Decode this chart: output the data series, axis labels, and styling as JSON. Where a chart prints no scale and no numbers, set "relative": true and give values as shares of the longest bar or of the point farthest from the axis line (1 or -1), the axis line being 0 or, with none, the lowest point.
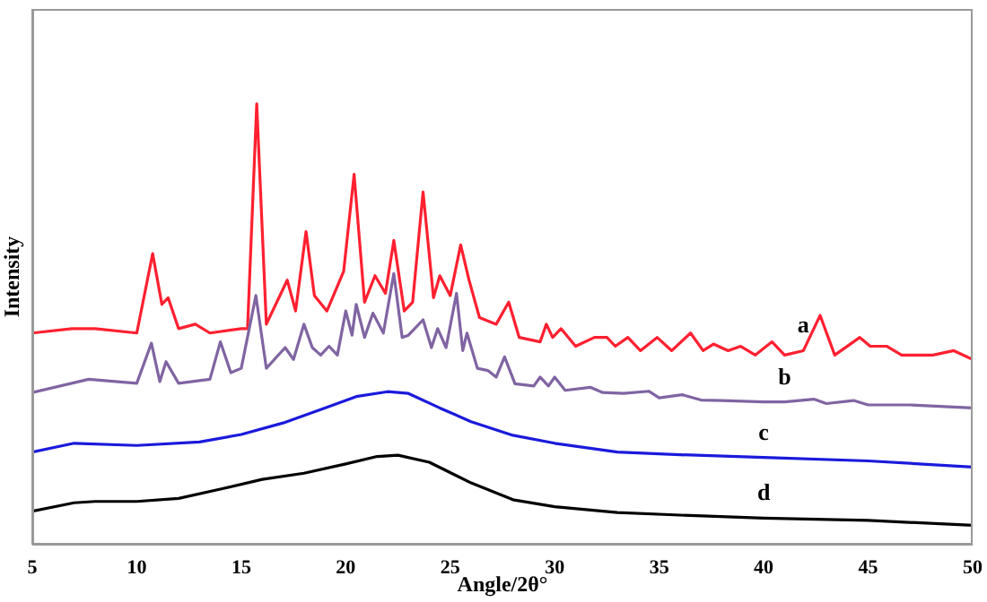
{
  "chart_data": {
    "type": "line",
    "xlabel": "Angle/2θ°",
    "ylabel": "Intensity",
    "relative": true,
    "xlim": [
      5,
      50
    ],
    "xticks": [
      5,
      10,
      15,
      20,
      25,
      30,
      35,
      40,
      45,
      50
    ],
    "tick_labels": "x",
    "series": [
      {
        "name": "a",
        "color": "#ff2030",
        "x": [
          5,
          6.9,
          8,
          10,
          10.76,
          11.2,
          11.5,
          12,
          12.8,
          13.5,
          15,
          15.3,
          15.74,
          16.2,
          17.2,
          17.6,
          18.1,
          18.5,
          19.1,
          19.9,
          20.4,
          20.9,
          21.4,
          21.9,
          22.3,
          22.8,
          23.2,
          23.7,
          24.2,
          24.5,
          25,
          25.5,
          25.9,
          26.4,
          27.2,
          27.8,
          28.3,
          29.3,
          29.6,
          29.9,
          30.3,
          31,
          31.9,
          32.5,
          32.9,
          33.5,
          34.1,
          34.9,
          35.6,
          36.5,
          37.1,
          37.6,
          38.3,
          38.9,
          39.6,
          40.4,
          41,
          41.9,
          42.7,
          43.4,
          44.6,
          45.1,
          45.9,
          46.6,
          48.1,
          49.1,
          50
        ],
        "values": [
          0.48,
          0.49,
          0.49,
          0.48,
          0.66,
          0.545,
          0.56,
          0.49,
          0.5,
          0.48,
          0.49,
          0.49,
          1.0,
          0.5,
          0.6,
          0.53,
          0.71,
          0.565,
          0.53,
          0.62,
          0.84,
          0.55,
          0.61,
          0.57,
          0.69,
          0.53,
          0.55,
          0.8,
          0.56,
          0.61,
          0.565,
          0.68,
          0.6,
          0.515,
          0.5,
          0.55,
          0.47,
          0.46,
          0.5,
          0.47,
          0.49,
          0.45,
          0.47,
          0.47,
          0.45,
          0.47,
          0.44,
          0.47,
          0.44,
          0.48,
          0.44,
          0.455,
          0.44,
          0.45,
          0.43,
          0.46,
          0.43,
          0.44,
          0.52,
          0.43,
          0.47,
          0.45,
          0.45,
          0.43,
          0.43,
          0.44,
          0.42
        ]
      },
      {
        "name": "b",
        "color": "#8064a2",
        "x": [
          5,
          7.7,
          10,
          10.7,
          11.1,
          11.4,
          12,
          13.5,
          14,
          14.5,
          15,
          15.7,
          16.2,
          17.1,
          17.5,
          18,
          18.4,
          18.8,
          19.2,
          19.6,
          20,
          20.3,
          20.5,
          20.9,
          21.3,
          21.8,
          22.3,
          22.7,
          23,
          23.7,
          24.1,
          24.4,
          24.8,
          25.3,
          25.6,
          25.8,
          26.3,
          26.8,
          27.2,
          27.6,
          28.1,
          29,
          29.3,
          29.7,
          30,
          30.5,
          31.7,
          32.3,
          33.3,
          34.5,
          35,
          36.1,
          37,
          38,
          40,
          41,
          42.4,
          43,
          44.3,
          45,
          47,
          50
        ],
        "values": [
          0.345,
          0.375,
          0.366,
          0.457,
          0.37,
          0.415,
          0.366,
          0.375,
          0.46,
          0.39,
          0.4,
          0.565,
          0.4,
          0.447,
          0.42,
          0.5,
          0.447,
          0.43,
          0.45,
          0.43,
          0.53,
          0.475,
          0.545,
          0.47,
          0.525,
          0.48,
          0.615,
          0.47,
          0.475,
          0.51,
          0.447,
          0.49,
          0.447,
          0.57,
          0.44,
          0.48,
          0.4,
          0.395,
          0.38,
          0.426,
          0.365,
          0.36,
          0.38,
          0.36,
          0.38,
          0.35,
          0.357,
          0.345,
          0.343,
          0.348,
          0.333,
          0.34,
          0.328,
          0.327,
          0.324,
          0.324,
          0.33,
          0.32,
          0.327,
          0.317,
          0.317,
          0.31
        ]
      },
      {
        "name": "c",
        "color": "#1a1adc",
        "x": [
          5,
          7,
          10,
          13,
          15,
          17,
          19,
          20.5,
          22,
          23,
          24.5,
          26,
          28,
          30,
          33,
          36,
          40,
          45,
          50
        ],
        "values": [
          0.21,
          0.23,
          0.225,
          0.233,
          0.25,
          0.276,
          0.31,
          0.336,
          0.347,
          0.343,
          0.31,
          0.279,
          0.248,
          0.23,
          0.21,
          0.204,
          0.198,
          0.19,
          0.176
        ]
      },
      {
        "name": "d",
        "color": "#000000",
        "x": [
          5,
          7,
          8,
          10,
          12,
          14,
          16,
          18,
          20,
          21.5,
          22.5,
          24,
          26,
          28,
          30,
          33,
          36,
          40,
          45,
          50
        ],
        "values": [
          0.076,
          0.095,
          0.098,
          0.098,
          0.105,
          0.126,
          0.148,
          0.162,
          0.183,
          0.2,
          0.203,
          0.187,
          0.14,
          0.102,
          0.086,
          0.073,
          0.067,
          0.06,
          0.055,
          0.044
        ]
      }
    ]
  }
}
